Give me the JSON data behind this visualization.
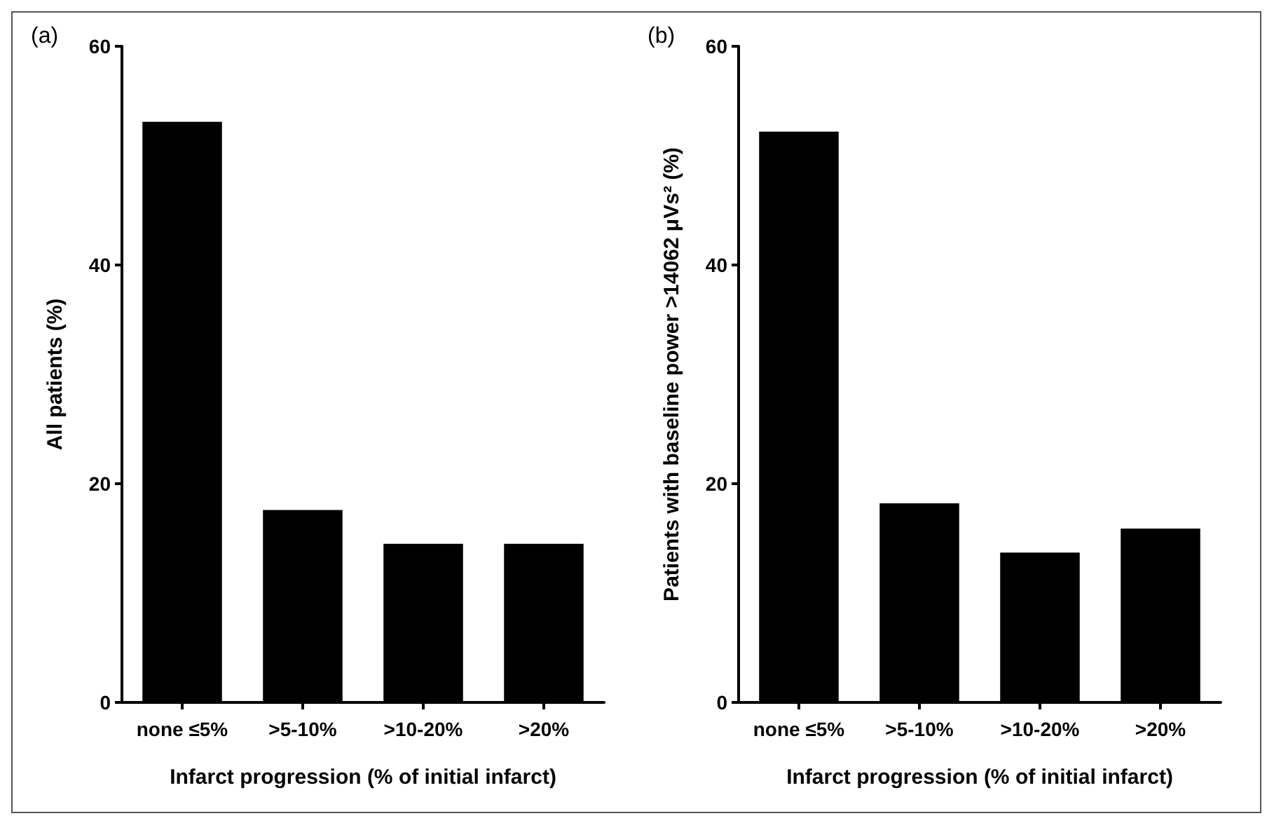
{
  "chart_data": [
    {
      "type": "bar",
      "title": "(a)",
      "categories": [
        "none ≤5%",
        ">5-10%",
        ">10-20%",
        ">20%"
      ],
      "values": [
        53.1,
        17.6,
        14.5,
        14.5
      ],
      "color": "#000000",
      "ylim": [
        0,
        60
      ],
      "yticks": [
        0,
        20,
        40,
        60
      ],
      "xlabel": "Infarct progression (% of initial infarct)",
      "ylabel": "All patients (%)",
      "grid": false
    },
    {
      "type": "bar",
      "title": "(b)",
      "categories": [
        "none ≤5%",
        ">5-10%",
        ">10-20%",
        ">20%"
      ],
      "values": [
        52.2,
        18.2,
        13.7,
        15.9
      ],
      "color": "#000000",
      "ylim": [
        0,
        60
      ],
      "yticks": [
        0,
        20,
        40,
        60
      ],
      "xlabel": "Infarct progression (% of initial infarct)",
      "ylabel": "Patients with baseline power >14062 μVs² (%)",
      "grid": false
    }
  ]
}
